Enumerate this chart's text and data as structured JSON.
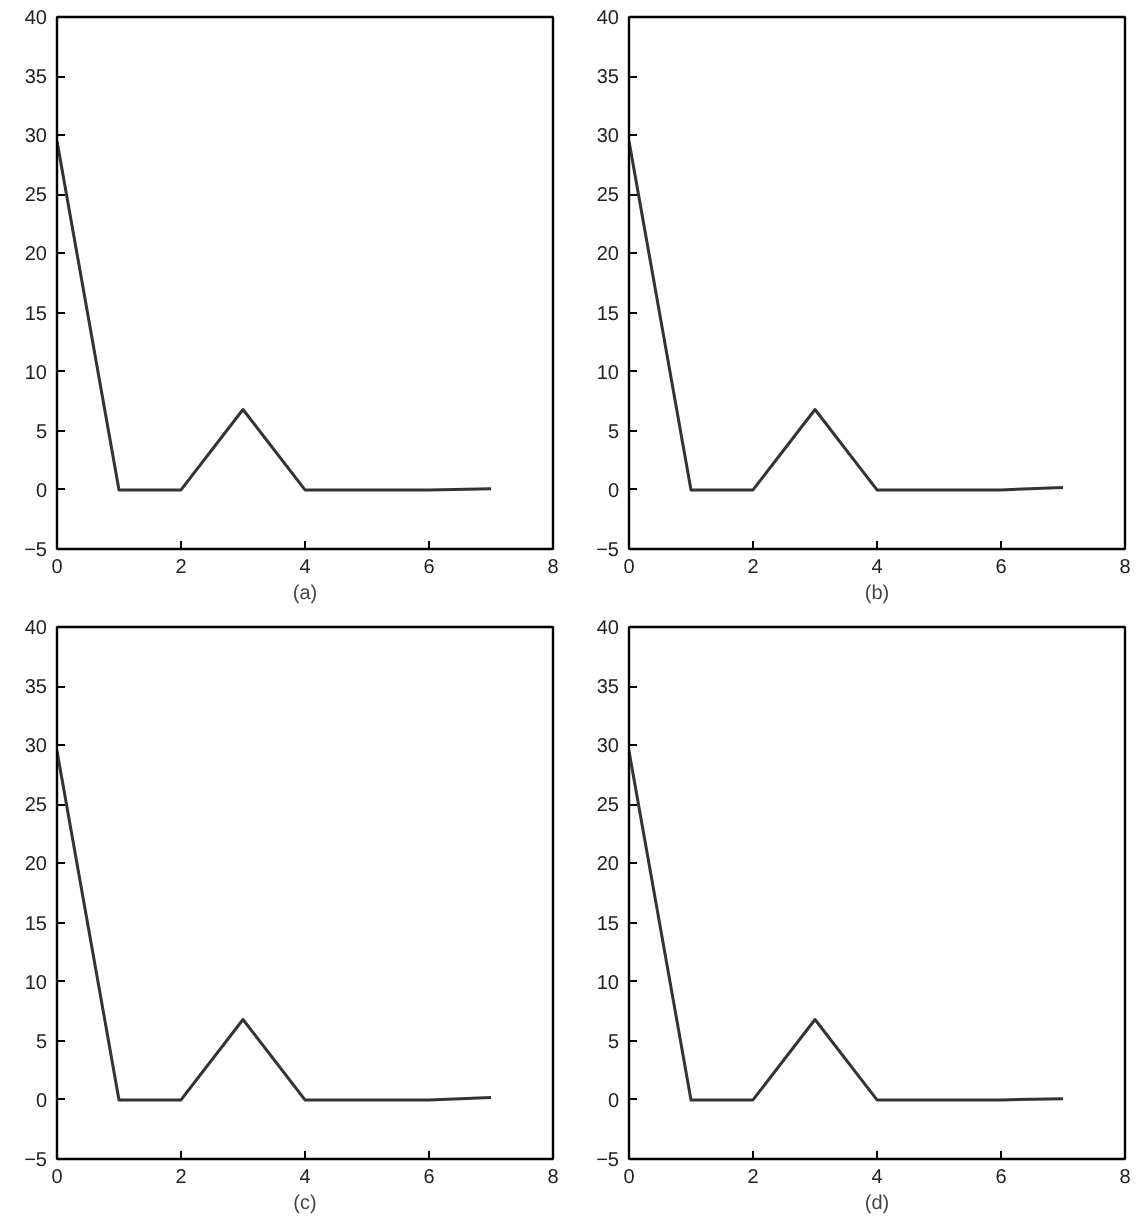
{
  "chart_data": [
    {
      "type": "line",
      "xlabel": "(a)",
      "x": [
        0,
        1,
        2,
        3,
        4,
        5,
        6,
        7
      ],
      "series": [
        {
          "color": "#333333",
          "values": [
            29.5,
            0,
            0,
            6.8,
            0,
            0,
            0,
            0.1
          ]
        }
      ],
      "xlim": [
        0,
        8
      ],
      "ylim": [
        -5,
        40
      ],
      "xticks": [
        0,
        2,
        4,
        6,
        8
      ],
      "yticks": [
        -5,
        0,
        5,
        10,
        15,
        20,
        25,
        30,
        35,
        40
      ],
      "grid": false
    },
    {
      "type": "line",
      "xlabel": "(b)",
      "x": [
        0,
        1,
        2,
        3,
        4,
        5,
        6,
        7
      ],
      "series": [
        {
          "color": "#333333",
          "values": [
            29.5,
            0,
            0,
            6.8,
            0,
            0,
            0,
            0.2
          ]
        }
      ],
      "xlim": [
        0,
        8
      ],
      "ylim": [
        -5,
        40
      ],
      "xticks": [
        0,
        2,
        4,
        6,
        8
      ],
      "yticks": [
        -5,
        0,
        5,
        10,
        15,
        20,
        25,
        30,
        35,
        40
      ],
      "grid": false
    },
    {
      "type": "line",
      "xlabel": "(c)",
      "x": [
        0,
        1,
        2,
        3,
        4,
        5,
        6,
        7
      ],
      "series": [
        {
          "color": "#333333",
          "values": [
            29.5,
            0,
            0,
            6.8,
            0,
            0,
            0,
            0.2
          ]
        }
      ],
      "xlim": [
        0,
        8
      ],
      "ylim": [
        -5,
        40
      ],
      "xticks": [
        0,
        2,
        4,
        6,
        8
      ],
      "yticks": [
        -5,
        0,
        5,
        10,
        15,
        20,
        25,
        30,
        35,
        40
      ],
      "grid": false
    },
    {
      "type": "line",
      "xlabel": "(d)",
      "x": [
        0,
        1,
        2,
        3,
        4,
        5,
        6,
        7
      ],
      "series": [
        {
          "color": "#333333",
          "values": [
            29.5,
            0,
            0,
            6.8,
            0,
            0,
            0,
            0.1
          ]
        }
      ],
      "xlim": [
        0,
        8
      ],
      "ylim": [
        -5,
        40
      ],
      "xticks": [
        0,
        2,
        4,
        6,
        8
      ],
      "yticks": [
        -5,
        0,
        5,
        10,
        15,
        20,
        25,
        30,
        35,
        40
      ],
      "grid": false
    }
  ]
}
